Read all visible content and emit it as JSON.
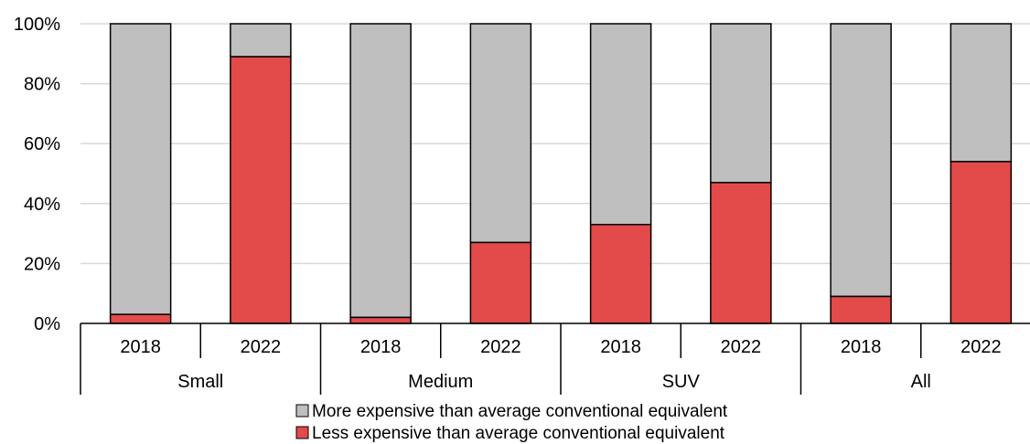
{
  "chart_data": {
    "type": "bar",
    "stacked": true,
    "y_ticks": [
      "0%",
      "20%",
      "40%",
      "60%",
      "80%",
      "100%"
    ],
    "ylim": [
      0,
      100
    ],
    "grid": true,
    "groups": [
      {
        "label": "Small",
        "years": [
          "2018",
          "2022"
        ]
      },
      {
        "label": "Medium",
        "years": [
          "2018",
          "2022"
        ]
      },
      {
        "label": "SUV",
        "years": [
          "2018",
          "2022"
        ]
      },
      {
        "label": "All",
        "years": [
          "2018",
          "2022"
        ]
      }
    ],
    "series": [
      {
        "name": "Less expensive than average conventional equivalent",
        "color": "#e34a4a",
        "values": [
          3,
          89,
          2,
          27,
          33,
          47,
          9,
          54
        ]
      },
      {
        "name": "More expensive than average conventional equivalent",
        "color": "#bfbfbf",
        "values": [
          97,
          11,
          98,
          73,
          67,
          53,
          91,
          46
        ]
      }
    ],
    "legend": {
      "position": "bottom",
      "order": [
        1,
        0
      ]
    }
  }
}
